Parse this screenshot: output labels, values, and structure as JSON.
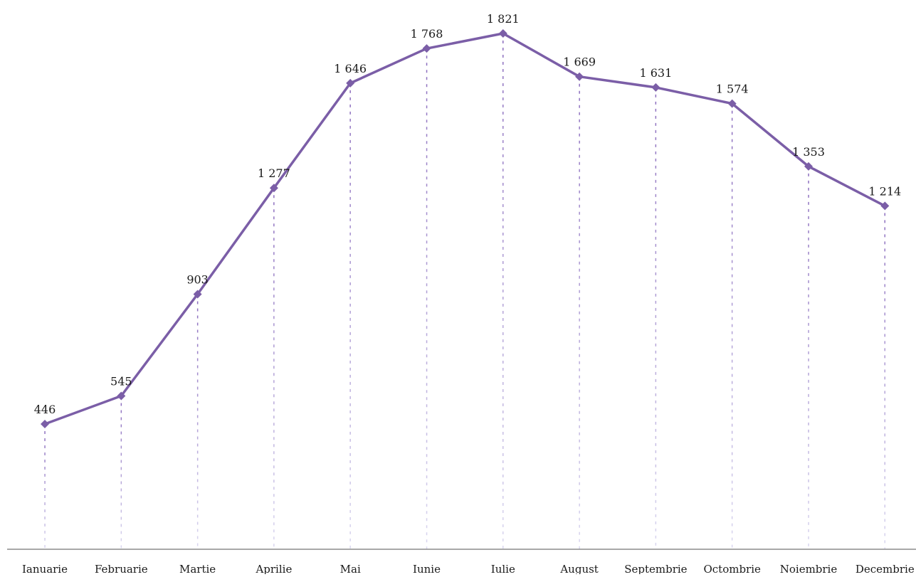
{
  "chart_data": {
    "type": "line",
    "categories": [
      "Ianuarie",
      "Februarie",
      "Martie",
      "Aprilie",
      "Mai",
      "Iunie",
      "Iulie",
      "August",
      "Septembrie",
      "Octombrie",
      "Noiembrie",
      "Decembrie"
    ],
    "series": [
      {
        "values": [
          446,
          545,
          903,
          1277,
          1646,
          1768,
          1821,
          1669,
          1631,
          1574,
          1353,
          1214
        ],
        "labels": [
          "446",
          "545",
          "903",
          "1 277",
          "1 646",
          "1 768",
          "1 821",
          "1 669",
          "1 631",
          "1 574",
          "1 353",
          "1 214"
        ]
      }
    ],
    "grid": false,
    "legend": "none",
    "marker": "diamond",
    "drop_lines": true,
    "colors": {
      "line": "#7b5ea7",
      "drop_line_top": "#8a6bbd",
      "drop_line_bottom": "#d9d6ef",
      "axis": "#8c8c8c"
    }
  }
}
